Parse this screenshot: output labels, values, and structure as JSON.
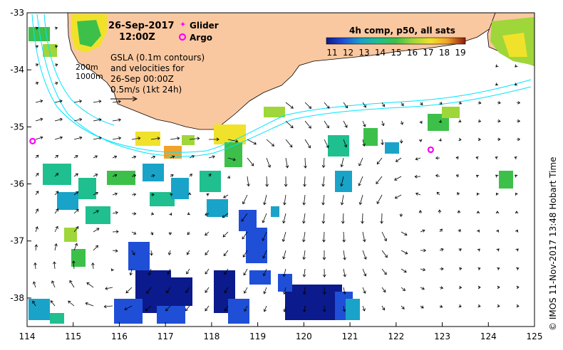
{
  "map": {
    "date_line": "26-Sep-2017",
    "time_line": "12:00Z",
    "legend": {
      "glider_label": "Glider",
      "argo_label": "Argo",
      "glider_color": "#ff00ff",
      "argo_color": "#ff00ff"
    },
    "gsla_note": [
      "GSLA (0.1m contours)",
      "and velocities for",
      "26-Sep 00:00Z",
      "0.5m/s (1kt 24h)"
    ],
    "isobath_labels": [
      "200m",
      "1000m"
    ],
    "colorbar": {
      "title": "4h comp, p50, all sats",
      "ticks": [
        "11",
        "12",
        "13",
        "14",
        "15",
        "16",
        "17",
        "18",
        "19"
      ],
      "colors": [
        "#0b1a8c",
        "#1f4fd6",
        "#19a3c9",
        "#1fbf8f",
        "#3cc04a",
        "#9fd63a",
        "#f0e22a",
        "#f2a22a",
        "#d9531e",
        "#8c1a0c"
      ]
    },
    "x_ticks": [
      "114",
      "115",
      "116",
      "117",
      "118",
      "119",
      "120",
      "121",
      "122",
      "123",
      "124",
      "125"
    ],
    "y_ticks": [
      "-33",
      "-34",
      "-35",
      "-36",
      "-37",
      "-38"
    ],
    "credit": "© IMOS 11-Nov-2017 13:48 Hobart Time",
    "land_color": "#fac8a0",
    "contour_color": "#00e5ff",
    "argo_positions": [
      {
        "lon": 114.12,
        "lat": -35.25
      },
      {
        "lon": 122.75,
        "lat": -35.4
      }
    ]
  }
}
